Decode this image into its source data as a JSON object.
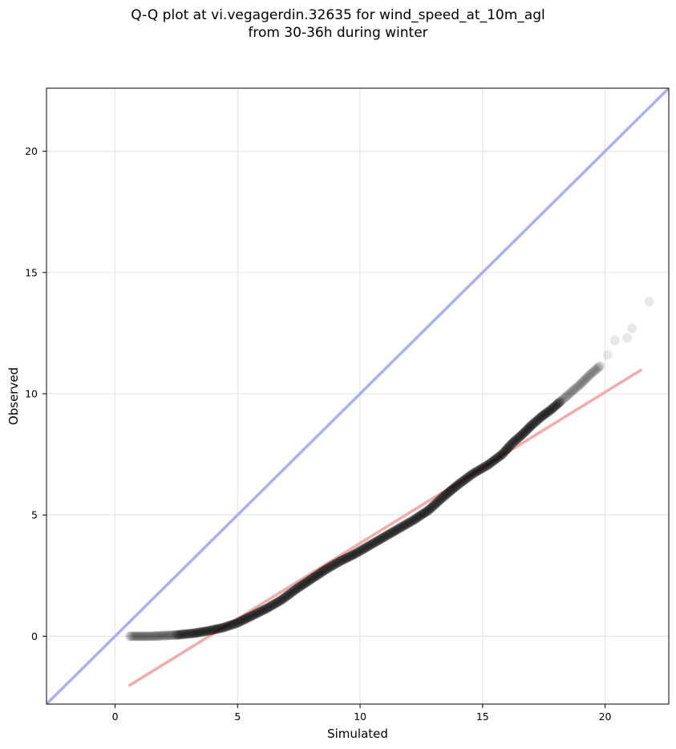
{
  "chart_data": {
    "type": "scatter",
    "title_line1": "Q-Q plot at vi.vegagerdin.32635 for wind_speed_at_10m_agl",
    "title_line2": "from 30-36h during winter",
    "xlabel": "Simulated",
    "ylabel": "Observed",
    "xlim": [
      -2.8,
      22.6
    ],
    "ylim": [
      -2.8,
      22.6
    ],
    "xticks": [
      0,
      5,
      10,
      15,
      20
    ],
    "yticks": [
      0,
      5,
      10,
      15,
      20
    ],
    "grid": true,
    "identity_line": {
      "color": "#aab0f5",
      "from": [
        -2.8,
        -2.8
      ],
      "to": [
        22.6,
        22.6
      ]
    },
    "fit_line": {
      "color": "#f5aaaa",
      "from": [
        0.55,
        -2.05
      ],
      "to": [
        21.5,
        11.0
      ]
    },
    "quantile_curve": [
      [
        0.6,
        0.0
      ],
      [
        1.5,
        0.0
      ],
      [
        2.5,
        0.05
      ],
      [
        3.2,
        0.12
      ],
      [
        3.8,
        0.22
      ],
      [
        4.4,
        0.35
      ],
      [
        5.0,
        0.55
      ],
      [
        5.6,
        0.85
      ],
      [
        6.2,
        1.15
      ],
      [
        6.8,
        1.5
      ],
      [
        7.4,
        1.95
      ],
      [
        8.0,
        2.35
      ],
      [
        8.6,
        2.75
      ],
      [
        9.2,
        3.1
      ],
      [
        9.8,
        3.4
      ],
      [
        10.4,
        3.75
      ],
      [
        11.0,
        4.1
      ],
      [
        11.6,
        4.45
      ],
      [
        12.2,
        4.8
      ],
      [
        12.8,
        5.2
      ],
      [
        13.4,
        5.75
      ],
      [
        14.0,
        6.25
      ],
      [
        14.6,
        6.7
      ],
      [
        15.2,
        7.05
      ],
      [
        15.8,
        7.5
      ],
      [
        16.2,
        7.95
      ],
      [
        16.6,
        8.3
      ],
      [
        17.0,
        8.7
      ],
      [
        17.4,
        9.05
      ],
      [
        17.8,
        9.35
      ],
      [
        18.2,
        9.7
      ],
      [
        18.6,
        10.05
      ],
      [
        19.0,
        10.4
      ],
      [
        19.4,
        10.8
      ],
      [
        19.8,
        11.15
      ],
      [
        20.1,
        11.6
      ],
      [
        20.4,
        12.2
      ],
      [
        20.9,
        12.3
      ],
      [
        21.1,
        12.7
      ],
      [
        21.8,
        13.8
      ]
    ],
    "marker_color": "#000000"
  }
}
